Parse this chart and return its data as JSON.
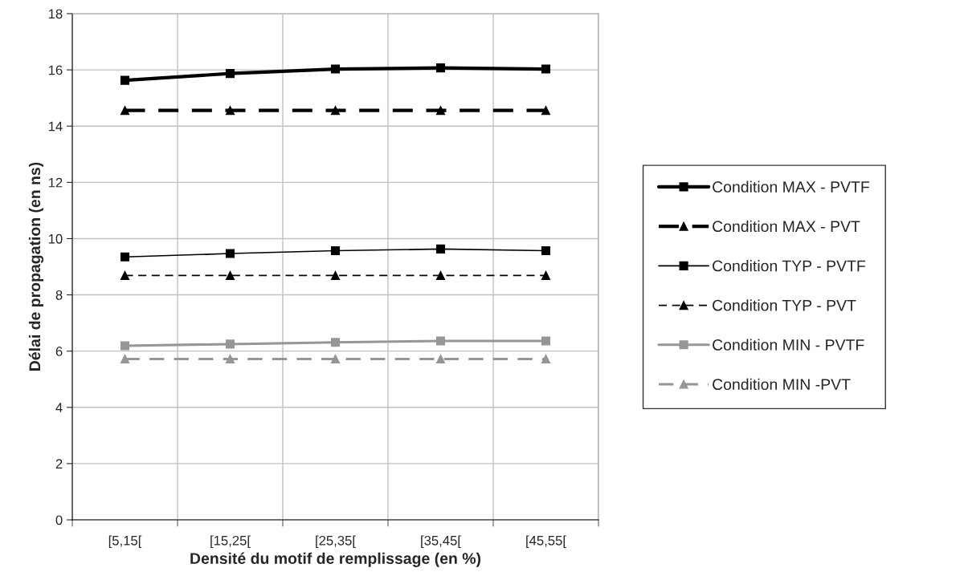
{
  "chart_data": {
    "type": "line",
    "xlabel": "Densité du motif de remplissage (en %)",
    "ylabel": "Délai de propagation (en ns)",
    "categories": [
      "[5,15[",
      "[15,25[",
      "[25,35[",
      "[35,45[",
      "[45,55["
    ],
    "ylim": [
      0,
      18
    ],
    "yticks": [
      0,
      2,
      4,
      6,
      8,
      10,
      12,
      14,
      16,
      18
    ],
    "grid": true,
    "legend": "right",
    "series": [
      {
        "name": "Condition MAX - PVTF",
        "color": "#000000",
        "marker": "square",
        "line_style": "solid",
        "values": [
          15.63,
          15.87,
          16.03,
          16.07,
          16.03
        ]
      },
      {
        "name": "Condition MAX - PVT",
        "color": "#000000",
        "marker": "triangle",
        "line_style": "dashed",
        "values": [
          14.56,
          14.56,
          14.56,
          14.56,
          14.56
        ]
      },
      {
        "name": "Condition TYP - PVTF",
        "color": "#000000",
        "marker": "square",
        "line_style": "solid",
        "values": [
          9.35,
          9.47,
          9.57,
          9.63,
          9.57
        ]
      },
      {
        "name": "Condition TYP - PVT",
        "color": "#000000",
        "marker": "triangle",
        "line_style": "dashed",
        "values": [
          8.69,
          8.69,
          8.69,
          8.69,
          8.69
        ]
      },
      {
        "name": "Condition MIN - PVTF",
        "color": "#969696",
        "marker": "square",
        "line_style": "solid",
        "values": [
          6.19,
          6.25,
          6.31,
          6.36,
          6.36
        ]
      },
      {
        "name": "Condition MIN -PVT",
        "color": "#969696",
        "marker": "triangle",
        "line_style": "dashed",
        "values": [
          5.72,
          5.72,
          5.72,
          5.72,
          5.72
        ]
      }
    ]
  }
}
